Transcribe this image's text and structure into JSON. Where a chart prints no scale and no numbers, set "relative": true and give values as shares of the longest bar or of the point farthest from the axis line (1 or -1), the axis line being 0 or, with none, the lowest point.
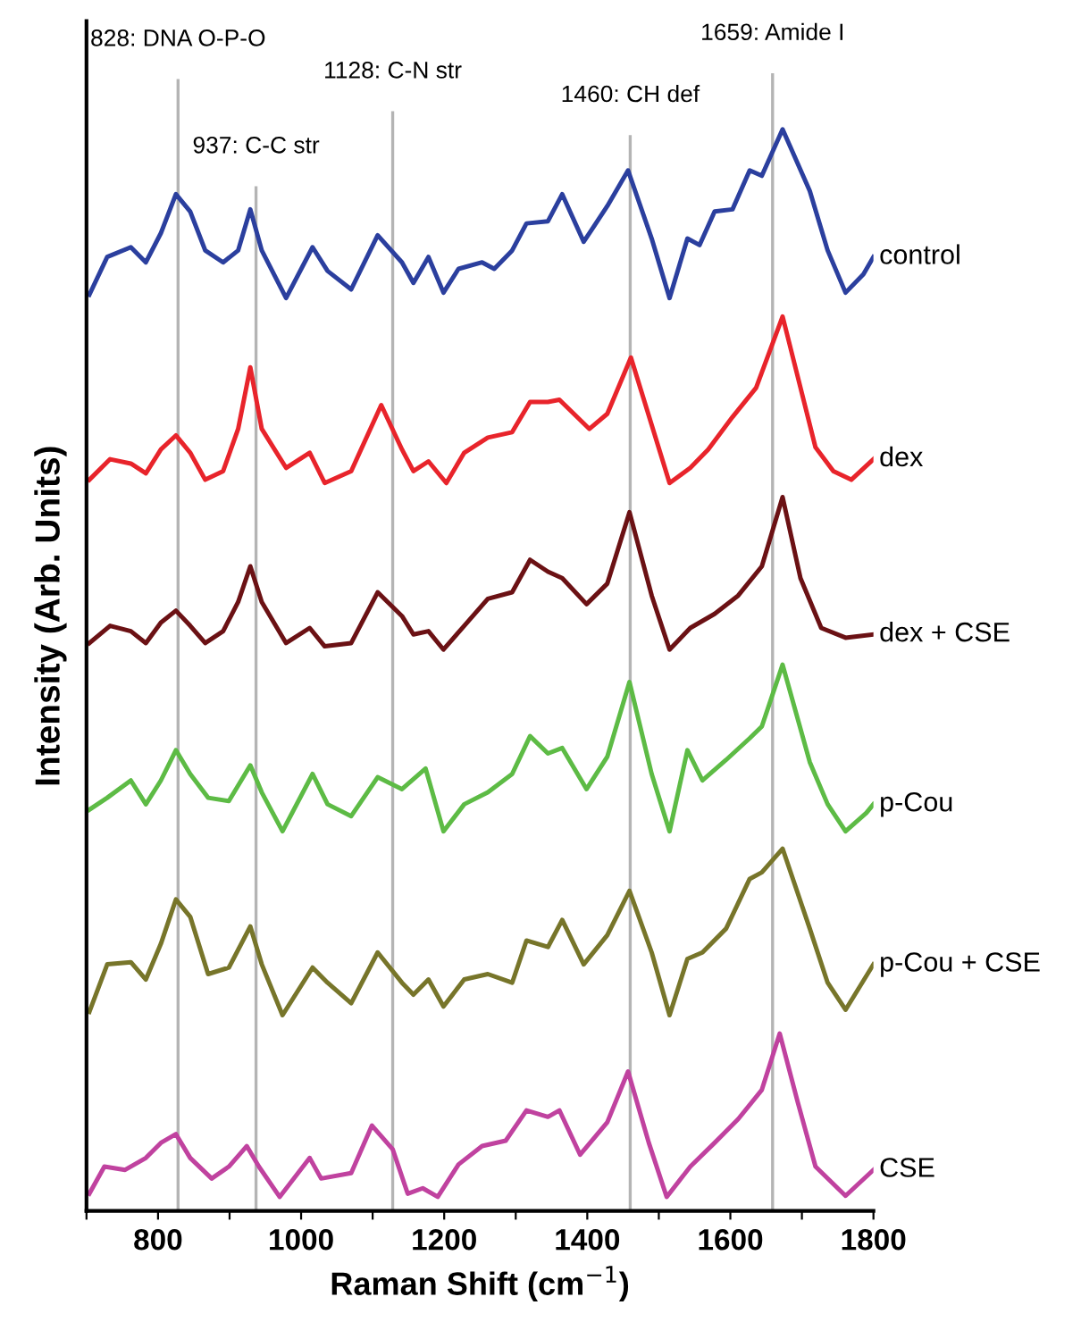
{
  "chart_data": {
    "type": "line",
    "relative": true,
    "xlabel": "Raman Shift (cm$^{−1}$)",
    "ylabel": "Intensity (Arb. Units)",
    "xlim": [
      700,
      1800
    ],
    "xticks": [
      {
        "value": 700,
        "label": null
      },
      800,
      {
        "value": 900,
        "label": null
      },
      1000,
      {
        "value": 1100,
        "label": null
      },
      1200,
      {
        "value": 1300,
        "label": null
      },
      1400,
      {
        "value": 1500,
        "label": null
      },
      1600,
      {
        "value": 1700,
        "label": null
      },
      1800
    ],
    "grid": false,
    "legend": false,
    "marker": "none",
    "line_style": "solid",
    "tick_labels": "x",
    "ref_lines": [
      {
        "axis": "x",
        "value": 828,
        "label": "828: DNA O-P-O",
        "color": "#b4b4b4"
      },
      {
        "axis": "x",
        "value": 937,
        "label": "937: C-C str",
        "color": "#b4b4b4"
      },
      {
        "axis": "x",
        "value": 1128,
        "label": "1128: C-N str",
        "color": "#b4b4b4"
      },
      {
        "axis": "x",
        "value": 1460,
        "label": "1460: CH def",
        "color": "#b4b4b4"
      },
      {
        "axis": "x",
        "value": 1659,
        "label": "1659: Amide I",
        "color": "#b4b4b4"
      }
    ],
    "series": [
      {
        "name": "control",
        "color": "#2b3f9e",
        "x": [
          704,
          729,
          762,
          783,
          804,
          825,
          845,
          866,
          891,
          912,
          929,
          945,
          979,
          1016,
          1037,
          1070,
          1107,
          1141,
          1157,
          1178,
          1199,
          1220,
          1253,
          1270,
          1295,
          1315,
          1345,
          1365,
          1395,
          1428,
          1457,
          1490,
          1515,
          1540,
          1557,
          1578,
          1603,
          1627,
          1644,
          1673,
          1711,
          1736,
          1761,
          1786,
          1800
        ],
        "values": [
          0.847,
          0.882,
          0.891,
          0.877,
          0.904,
          0.94,
          0.924,
          0.888,
          0.877,
          0.888,
          0.926,
          0.888,
          0.844,
          0.891,
          0.869,
          0.852,
          0.902,
          0.877,
          0.858,
          0.882,
          0.849,
          0.871,
          0.877,
          0.871,
          0.888,
          0.913,
          0.915,
          0.94,
          0.896,
          0.929,
          0.962,
          0.899,
          0.844,
          0.899,
          0.893,
          0.924,
          0.926,
          0.962,
          0.957,
          1.0,
          0.943,
          0.888,
          0.849,
          0.866,
          0.882
        ]
      },
      {
        "name": "dex",
        "color": "#e8242b",
        "x": [
          704,
          733,
          762,
          783,
          804,
          825,
          845,
          866,
          891,
          912,
          929,
          945,
          979,
          1012,
          1033,
          1070,
          1112,
          1141,
          1157,
          1178,
          1203,
          1228,
          1261,
          1295,
          1320,
          1345,
          1361,
          1378,
          1403,
          1428,
          1461,
          1515,
          1544,
          1569,
          1603,
          1636,
          1673,
          1719,
          1744,
          1769,
          1800
        ],
        "values": [
          0.676,
          0.695,
          0.691,
          0.682,
          0.704,
          0.717,
          0.701,
          0.676,
          0.684,
          0.723,
          0.78,
          0.723,
          0.687,
          0.701,
          0.673,
          0.684,
          0.745,
          0.704,
          0.684,
          0.693,
          0.673,
          0.701,
          0.715,
          0.72,
          0.748,
          0.748,
          0.75,
          0.739,
          0.723,
          0.737,
          0.789,
          0.673,
          0.687,
          0.704,
          0.734,
          0.761,
          0.827,
          0.706,
          0.684,
          0.676,
          0.695
        ]
      },
      {
        "name": "dex + CSE",
        "color": "#6b1114",
        "x": [
          704,
          733,
          762,
          783,
          804,
          825,
          845,
          866,
          891,
          912,
          929,
          945,
          979,
          1012,
          1033,
          1070,
          1107,
          1141,
          1157,
          1178,
          1199,
          1228,
          1261,
          1295,
          1320,
          1345,
          1365,
          1399,
          1428,
          1459,
          1490,
          1515,
          1544,
          1578,
          1611,
          1644,
          1673,
          1698,
          1727,
          1761,
          1800
        ],
        "values": [
          0.525,
          0.541,
          0.536,
          0.525,
          0.544,
          0.555,
          0.541,
          0.525,
          0.536,
          0.563,
          0.596,
          0.563,
          0.525,
          0.539,
          0.522,
          0.525,
          0.572,
          0.55,
          0.533,
          0.536,
          0.519,
          0.541,
          0.566,
          0.572,
          0.602,
          0.591,
          0.585,
          0.561,
          0.58,
          0.646,
          0.569,
          0.519,
          0.539,
          0.552,
          0.569,
          0.596,
          0.66,
          0.585,
          0.539,
          0.53,
          0.533
        ]
      },
      {
        "name": "p-Cou",
        "color": "#5dbb45",
        "x": [
          704,
          729,
          762,
          783,
          804,
          825,
          845,
          870,
          899,
          929,
          945,
          974,
          1016,
          1037,
          1070,
          1107,
          1141,
          1174,
          1199,
          1228,
          1261,
          1295,
          1320,
          1345,
          1365,
          1399,
          1428,
          1459,
          1490,
          1515,
          1540,
          1561,
          1594,
          1627,
          1644,
          1673,
          1711,
          1736,
          1761,
          1790,
          1800
        ],
        "values": [
          0.371,
          0.382,
          0.398,
          0.376,
          0.398,
          0.426,
          0.404,
          0.382,
          0.379,
          0.412,
          0.387,
          0.351,
          0.404,
          0.376,
          0.365,
          0.401,
          0.39,
          0.409,
          0.351,
          0.376,
          0.387,
          0.404,
          0.439,
          0.423,
          0.428,
          0.39,
          0.42,
          0.489,
          0.404,
          0.351,
          0.426,
          0.398,
          0.417,
          0.437,
          0.448,
          0.505,
          0.415,
          0.376,
          0.351,
          0.368,
          0.376
        ]
      },
      {
        "name": "p-Cou + CSE",
        "color": "#77752a",
        "x": [
          704,
          729,
          762,
          783,
          804,
          825,
          845,
          870,
          899,
          929,
          945,
          974,
          1016,
          1037,
          1070,
          1107,
          1141,
          1157,
          1178,
          1199,
          1228,
          1261,
          1295,
          1315,
          1345,
          1365,
          1395,
          1428,
          1459,
          1490,
          1515,
          1540,
          1561,
          1594,
          1627,
          1644,
          1673,
          1711,
          1736,
          1761,
          1800
        ],
        "values": [
          0.184,
          0.228,
          0.23,
          0.214,
          0.247,
          0.288,
          0.272,
          0.219,
          0.225,
          0.263,
          0.228,
          0.181,
          0.225,
          0.211,
          0.192,
          0.239,
          0.211,
          0.2,
          0.214,
          0.189,
          0.214,
          0.219,
          0.211,
          0.25,
          0.244,
          0.269,
          0.228,
          0.255,
          0.296,
          0.239,
          0.181,
          0.233,
          0.239,
          0.261,
          0.307,
          0.313,
          0.335,
          0.261,
          0.211,
          0.186,
          0.228
        ]
      },
      {
        "name": "CSE",
        "color": "#c0429f",
        "x": [
          704,
          725,
          754,
          783,
          804,
          825,
          845,
          875,
          899,
          924,
          941,
          970,
          1012,
          1028,
          1070,
          1099,
          1128,
          1149,
          1170,
          1191,
          1220,
          1253,
          1286,
          1315,
          1345,
          1361,
          1390,
          1428,
          1457,
          1486,
          1511,
          1544,
          1578,
          1611,
          1644,
          1669,
          1694,
          1719,
          1761,
          1800
        ],
        "values": [
          0.016,
          0.041,
          0.038,
          0.049,
          0.063,
          0.071,
          0.049,
          0.03,
          0.041,
          0.06,
          0.041,
          0.013,
          0.049,
          0.03,
          0.035,
          0.079,
          0.057,
          0.016,
          0.021,
          0.013,
          0.043,
          0.06,
          0.065,
          0.093,
          0.087,
          0.093,
          0.052,
          0.082,
          0.129,
          0.063,
          0.013,
          0.041,
          0.063,
          0.085,
          0.112,
          0.164,
          0.101,
          0.041,
          0.014,
          0.038
        ]
      }
    ]
  }
}
